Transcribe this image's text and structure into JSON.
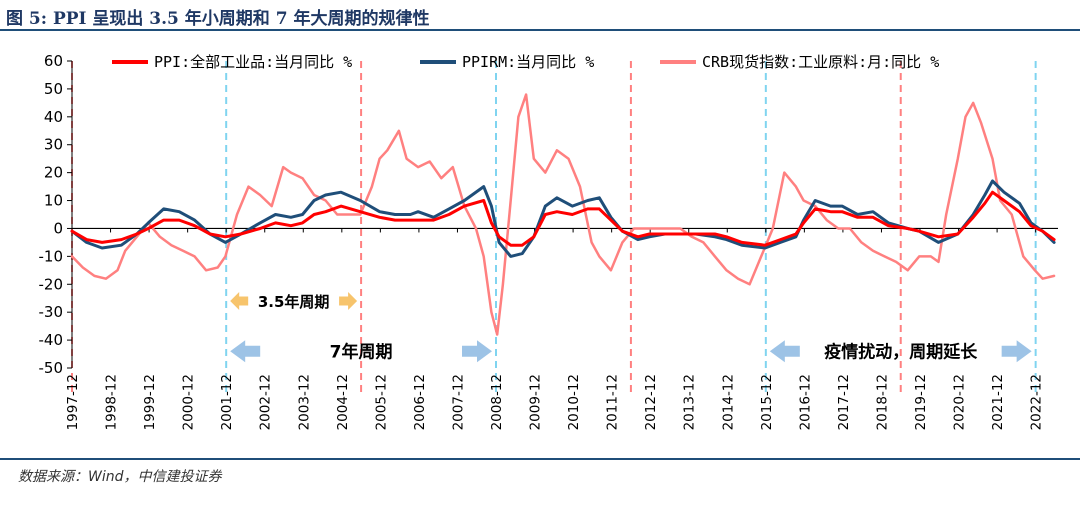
{
  "figure": {
    "title": "图 5: PPI 呈现出 3.5 年小周期和 7 年大周期的规律性",
    "source": "数据来源：Wind，中信建投证券"
  },
  "chart_data": {
    "type": "line",
    "ylim": [
      -50,
      60
    ],
    "yticks": [
      60,
      50,
      40,
      30,
      20,
      10,
      0,
      -10,
      -20,
      -30,
      -40,
      -50
    ],
    "xlim": [
      1997.92,
      2023.5
    ],
    "xticks": [
      "1997-12",
      "1998-12",
      "1999-12",
      "2000-12",
      "2001-12",
      "2002-12",
      "2003-12",
      "2004-12",
      "2005-12",
      "2006-12",
      "2007-12",
      "2008-12",
      "2009-12",
      "2010-12",
      "2011-12",
      "2012-12",
      "2013-12",
      "2014-12",
      "2015-12",
      "2016-12",
      "2017-12",
      "2018-12",
      "2019-12",
      "2020-12",
      "2021-12",
      "2022-12"
    ],
    "grid": false,
    "legend_position": "top",
    "series": [
      {
        "name": "PPI:全部工业品:当月同比 %",
        "color": "#ff0000",
        "x": [
          1997.92,
          1998.3,
          1998.7,
          1999.2,
          1999.6,
          1999.9,
          2000.3,
          2000.7,
          2001.1,
          2001.5,
          2001.9,
          2002.3,
          2002.8,
          2003.2,
          2003.6,
          2003.9,
          2004.2,
          2004.5,
          2004.9,
          2005.4,
          2005.9,
          2006.3,
          2006.7,
          2006.9,
          2007.3,
          2007.7,
          2008.1,
          2008.6,
          2008.8,
          2009.0,
          2009.3,
          2009.6,
          2009.9,
          2010.2,
          2010.5,
          2010.9,
          2011.3,
          2011.6,
          2011.9,
          2012.2,
          2012.6,
          2012.9,
          2013.3,
          2013.7,
          2014.1,
          2014.6,
          2014.9,
          2015.3,
          2015.9,
          2016.3,
          2016.7,
          2016.9,
          2017.2,
          2017.6,
          2017.9,
          2018.3,
          2018.7,
          2019.1,
          2019.6,
          2019.9,
          2020.4,
          2020.9,
          2021.3,
          2021.6,
          2021.8,
          2022.1,
          2022.5,
          2022.8,
          2023.1,
          2023.4
        ],
        "y": [
          -1,
          -4,
          -5,
          -4,
          -2,
          0,
          3,
          3,
          1,
          -2,
          -3,
          -2,
          0,
          2,
          1,
          2,
          5,
          6,
          8,
          6,
          4,
          3,
          3,
          3,
          3,
          5,
          8,
          10,
          2,
          -3,
          -6,
          -6,
          -3,
          5,
          6,
          5,
          7,
          7,
          3,
          -1,
          -3,
          -2,
          -2,
          -2,
          -2,
          -2,
          -3,
          -5,
          -6,
          -4,
          -2,
          2,
          7,
          6,
          6,
          4,
          4,
          1,
          0,
          -1,
          -3,
          -2,
          4,
          9,
          13,
          10,
          6,
          1,
          -1,
          -4
        ]
      },
      {
        "name": "PPIRM:当月同比 %",
        "color": "#1f4e79",
        "x": [
          1997.92,
          1998.3,
          1998.7,
          1999.2,
          1999.6,
          1999.9,
          2000.3,
          2000.7,
          2001.1,
          2001.5,
          2001.9,
          2002.3,
          2002.8,
          2003.2,
          2003.6,
          2003.9,
          2004.2,
          2004.5,
          2004.9,
          2005.4,
          2005.9,
          2006.3,
          2006.7,
          2006.9,
          2007.3,
          2007.7,
          2008.1,
          2008.6,
          2008.8,
          2009.0,
          2009.3,
          2009.6,
          2009.9,
          2010.2,
          2010.5,
          2010.9,
          2011.3,
          2011.6,
          2011.9,
          2012.2,
          2012.6,
          2012.9,
          2013.3,
          2013.7,
          2014.1,
          2014.6,
          2014.9,
          2015.3,
          2015.9,
          2016.3,
          2016.7,
          2016.9,
          2017.2,
          2017.6,
          2017.9,
          2018.3,
          2018.7,
          2019.1,
          2019.6,
          2019.9,
          2020.4,
          2020.9,
          2021.3,
          2021.6,
          2021.8,
          2022.1,
          2022.5,
          2022.8,
          2023.1,
          2023.4
        ],
        "y": [
          -1,
          -5,
          -7,
          -6,
          -2,
          2,
          7,
          6,
          3,
          -2,
          -5,
          -2,
          2,
          5,
          4,
          5,
          10,
          12,
          13,
          10,
          6,
          5,
          5,
          6,
          4,
          7,
          10,
          15,
          8,
          -5,
          -10,
          -9,
          -3,
          8,
          11,
          8,
          10,
          11,
          4,
          -1,
          -4,
          -3,
          -2,
          -2,
          -2,
          -3,
          -4,
          -6,
          -7,
          -5,
          -3,
          3,
          10,
          8,
          8,
          5,
          6,
          2,
          0,
          -1,
          -5,
          -2,
          5,
          12,
          17,
          13,
          9,
          2,
          -1,
          -5
        ]
      },
      {
        "name": "CRB现货指数:工业原料:月:同比 %",
        "color": "#ff8080",
        "x": [
          1997.92,
          1998.2,
          1998.5,
          1998.8,
          1999.1,
          1999.3,
          1999.6,
          1999.9,
          2000.2,
          2000.5,
          2000.8,
          2001.1,
          2001.4,
          2001.7,
          2001.9,
          2002.2,
          2002.5,
          2002.8,
          2003.1,
          2003.4,
          2003.6,
          2003.9,
          2004.2,
          2004.5,
          2004.8,
          2005.1,
          2005.4,
          2005.7,
          2005.9,
          2006.1,
          2006.4,
          2006.6,
          2006.9,
          2007.2,
          2007.5,
          2007.8,
          2008.1,
          2008.4,
          2008.6,
          2008.8,
          2008.95,
          2009.1,
          2009.3,
          2009.5,
          2009.7,
          2009.9,
          2010.2,
          2010.5,
          2010.8,
          2011.1,
          2011.4,
          2011.6,
          2011.9,
          2012.2,
          2012.5,
          2012.8,
          2013.1,
          2013.4,
          2013.7,
          2014.0,
          2014.3,
          2014.6,
          2014.9,
          2015.2,
          2015.5,
          2015.8,
          2016.1,
          2016.4,
          2016.7,
          2016.9,
          2017.2,
          2017.5,
          2017.8,
          2018.1,
          2018.4,
          2018.7,
          2019.0,
          2019.3,
          2019.6,
          2019.9,
          2020.2,
          2020.4,
          2020.6,
          2020.9,
          2021.1,
          2021.3,
          2021.5,
          2021.8,
          2022.0,
          2022.3,
          2022.6,
          2022.9,
          2023.1,
          2023.4
        ],
        "y": [
          -10,
          -14,
          -17,
          -18,
          -15,
          -8,
          -3,
          2,
          -3,
          -6,
          -8,
          -10,
          -15,
          -14,
          -10,
          5,
          15,
          12,
          8,
          22,
          20,
          18,
          12,
          10,
          5,
          5,
          5,
          15,
          25,
          28,
          35,
          25,
          22,
          24,
          18,
          22,
          8,
          0,
          -10,
          -30,
          -38,
          -20,
          10,
          40,
          48,
          25,
          20,
          28,
          25,
          15,
          -5,
          -10,
          -15,
          -5,
          0,
          0,
          0,
          0,
          0,
          -3,
          -5,
          -10,
          -15,
          -18,
          -20,
          -10,
          0,
          20,
          15,
          10,
          8,
          3,
          0,
          0,
          -5,
          -8,
          -10,
          -12,
          -15,
          -10,
          -10,
          -12,
          5,
          25,
          40,
          45,
          38,
          25,
          10,
          5,
          -10,
          -15,
          -18,
          -17
        ]
      }
    ],
    "vlines": [
      {
        "x": 1997.92,
        "color": "#ff8080"
      },
      {
        "x": 2001.92,
        "color": "#80d4f0"
      },
      {
        "x": 2005.42,
        "color": "#ff8080"
      },
      {
        "x": 2008.92,
        "color": "#80d4f0"
      },
      {
        "x": 2012.42,
        "color": "#ff8080"
      },
      {
        "x": 2015.92,
        "color": "#80d4f0"
      },
      {
        "x": 2019.42,
        "color": "#ff8080"
      },
      {
        "x": 2022.92,
        "color": "#80d4f0"
      }
    ],
    "annotations": [
      {
        "text": "3.5年周期",
        "x_from": 2001.92,
        "x_to": 2005.42,
        "y": -26,
        "arrow_color": "#f7c46c"
      },
      {
        "text": "7年周期",
        "x_from": 2001.92,
        "x_to": 2008.92,
        "y": -44,
        "arrow_color": "#9dc3e6"
      },
      {
        "text": "疫情扰动，周期延长",
        "x_from": 2015.92,
        "x_to": 2022.92,
        "y": -44,
        "arrow_color": "#9dc3e6"
      }
    ]
  }
}
